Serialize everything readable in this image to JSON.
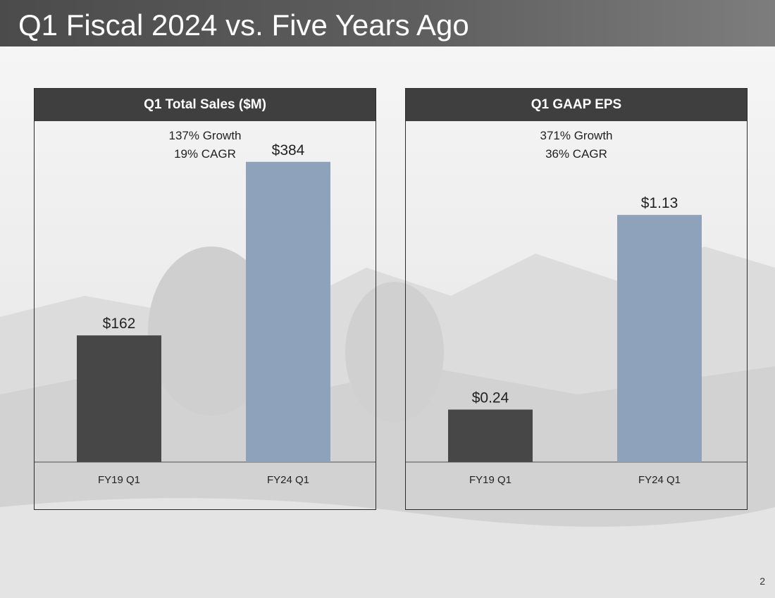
{
  "slide": {
    "title": "Q1 Fiscal 2024 vs. Five Years Ago",
    "page_number": "2"
  },
  "colors": {
    "dark_bar": "#474747",
    "light_bar": "#8ea3bb",
    "header": "#3f3f3f"
  },
  "chart_data": [
    {
      "type": "bar",
      "title": "Q1 Total Sales ($M)",
      "growth_line": "137% Growth",
      "cagr_line": "19% CAGR",
      "categories": [
        "FY19 Q1",
        "FY24 Q1"
      ],
      "values": [
        162,
        384
      ],
      "data_labels": [
        "$162",
        "$384"
      ],
      "ylim": [
        0,
        400
      ],
      "xlabel": "",
      "ylabel": ""
    },
    {
      "type": "bar",
      "title": "Q1 GAAP EPS",
      "growth_line": "371% Growth",
      "cagr_line": "36% CAGR",
      "categories": [
        "FY19 Q1",
        "FY24 Q1"
      ],
      "values": [
        0.24,
        1.13
      ],
      "data_labels": [
        "$0.24",
        "$1.13"
      ],
      "ylim": [
        0,
        1.43
      ],
      "xlabel": "",
      "ylabel": ""
    }
  ]
}
